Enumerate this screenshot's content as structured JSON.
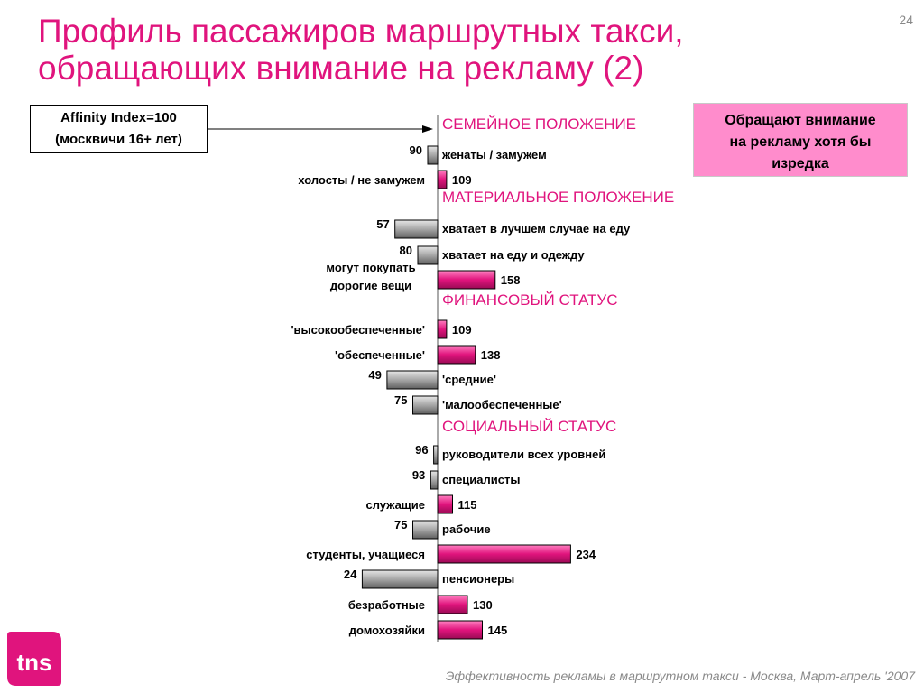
{
  "header": {
    "title_line1": "Профиль пассажиров маршрутных такси,",
    "title_line2": "обращающих внимание на рекламу (2)",
    "page_number": "24"
  },
  "affinity_box": {
    "line1": "Affinity Index=100",
    "line2": "(москвичи 16+ лет)"
  },
  "callout": {
    "line1": "Обращают внимание",
    "line2": "на рекламу хотя бы",
    "line3": "изредка"
  },
  "footer": {
    "text": "Эффективность рекламы в маршрутном такси - Москва, Март-апрель '2007"
  },
  "logo": {
    "text": "tns",
    "tm": "TM"
  },
  "colors": {
    "accent": "#e0147d",
    "above_fill": "#e0147d",
    "below_fill": "#a6a6a6",
    "callout_bg": "#ff8ccc"
  },
  "chart_data": {
    "type": "bar",
    "orientation": "horizontal",
    "baseline": 100,
    "sections": [
      {
        "header": "СЕМЕЙНОЕ ПОЛОЖЕНИЕ",
        "items": [
          {
            "label": "женаты / замужем",
            "value": 90
          },
          {
            "label": "холосты / не замужем",
            "value": 109
          }
        ]
      },
      {
        "header": "МАТЕРИАЛЬНОЕ ПОЛОЖЕНИЕ",
        "items": [
          {
            "label": "хватает в лучшем случае на еду",
            "value": 57
          },
          {
            "label": "хватает на еду и одежду",
            "value": 80
          },
          {
            "label": "могут покупать\nдорогие вещи",
            "value": 158
          }
        ]
      },
      {
        "header": "ФИНАНСОВЫЙ СТАТУС",
        "items": [
          {
            "label": "'высокообеспеченные'",
            "value": 109
          },
          {
            "label": "'обеспеченные'",
            "value": 138
          },
          {
            "label": "'средние'",
            "value": 49
          },
          {
            "label": "'малообеспеченные'",
            "value": 75
          }
        ]
      },
      {
        "header": "СОЦИАЛЬНЫЙ СТАТУС",
        "items": [
          {
            "label": "руководители всех уровней",
            "value": 96
          },
          {
            "label": "специалисты",
            "value": 93
          },
          {
            "label": "служащие",
            "value": 115
          },
          {
            "label": "рабочие",
            "value": 75
          },
          {
            "label": "студенты, учащиеся",
            "value": 234
          },
          {
            "label": "пенсионеры",
            "value": 24
          },
          {
            "label": "безработные",
            "value": 130
          },
          {
            "label": "домохозяйки",
            "value": 145
          }
        ]
      }
    ]
  }
}
